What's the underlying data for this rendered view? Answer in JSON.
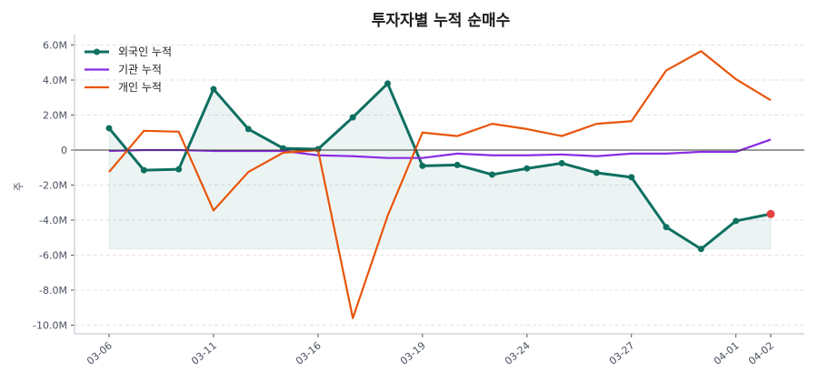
{
  "chart_data": {
    "type": "line",
    "title": "투자자별 누적 순매수",
    "xlabel": "",
    "ylabel": "주",
    "categories": [
      "03-06",
      "",
      "",
      "03-11",
      "",
      "",
      "03-16",
      "",
      "",
      "03-19",
      "",
      "",
      "03-24",
      "",
      "",
      "03-27",
      "",
      "",
      "04-01",
      "04-02"
    ],
    "ylim": [
      -10.5,
      6.5
    ],
    "yticks": [
      6,
      4,
      2,
      0,
      -2,
      -4,
      -6,
      -8,
      -10
    ],
    "ytick_labels": [
      "6.0M",
      "4.0M",
      "2.0M",
      "0",
      "-2.0M",
      "-4.0M",
      "-6.0M",
      "-8.0M",
      "-10.0M"
    ],
    "y_unit": "M",
    "grid": "horizontal dashed",
    "legend_position": "top-left",
    "zero_line": true,
    "series": [
      {
        "name": "외국인 누적",
        "color": "#0f7060",
        "markers": true,
        "fill_to_min": true,
        "last_point_color": "#e54040",
        "values": [
          1.25,
          -1.15,
          -1.1,
          3.48,
          1.2,
          0.1,
          0.05,
          1.87,
          3.8,
          -0.9,
          -0.85,
          -1.4,
          -1.05,
          -0.75,
          -1.3,
          -1.55,
          -4.4,
          -5.65,
          -4.05,
          -3.65
        ]
      },
      {
        "name": "기관 누적",
        "color": "#8a2be2",
        "markers": false,
        "values": [
          -0.05,
          0,
          0,
          -0.05,
          -0.05,
          -0.05,
          -0.3,
          -0.35,
          -0.45,
          -0.45,
          -0.2,
          -0.3,
          -0.3,
          -0.25,
          -0.35,
          -0.2,
          -0.2,
          -0.1,
          -0.1,
          0.6
        ]
      },
      {
        "name": "개인 누적",
        "color": "#e8550a",
        "markers": false,
        "values": [
          -1.25,
          1.1,
          1.05,
          -3.45,
          -1.25,
          -0.15,
          0,
          -9.6,
          -3.75,
          1.0,
          0.8,
          1.5,
          1.2,
          0.8,
          1.5,
          1.65,
          4.55,
          5.65,
          4.05,
          2.85
        ]
      }
    ]
  }
}
